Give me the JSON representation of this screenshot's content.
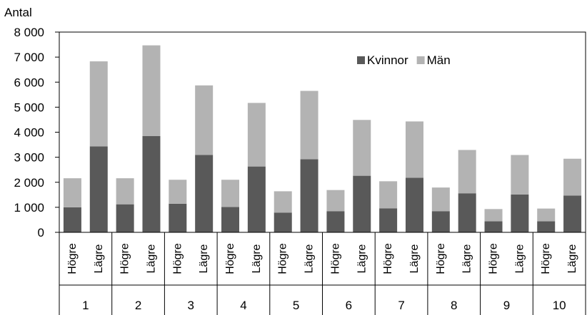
{
  "chart_data": {
    "type": "bar",
    "stacked": true,
    "ylabel": "Antal",
    "ylim": [
      0,
      8000
    ],
    "yticks": [
      "0",
      "1 000",
      "2 000",
      "3 000",
      "4 000",
      "5 000",
      "6 000",
      "7 000",
      "8 000"
    ],
    "ytick_values": [
      0,
      1000,
      2000,
      3000,
      4000,
      5000,
      6000,
      7000,
      8000
    ],
    "grid": false,
    "legend_position": "top-right",
    "groups": [
      "1",
      "2",
      "3",
      "4",
      "5",
      "6",
      "7",
      "8",
      "9",
      "10"
    ],
    "subcategories": [
      "Högre",
      "Lägre"
    ],
    "series": [
      {
        "name": "Kvinnor",
        "color": "#595959",
        "values": [
          1000,
          3430,
          1120,
          3850,
          1140,
          3090,
          1010,
          2630,
          790,
          2920,
          840,
          2260,
          960,
          2180,
          840,
          1560,
          440,
          1510,
          440,
          1470
        ]
      },
      {
        "name": "Män",
        "color": "#b3b3b3",
        "values": [
          1160,
          3400,
          1040,
          3620,
          960,
          2780,
          1090,
          2540,
          850,
          2730,
          850,
          2230,
          1080,
          2250,
          950,
          1730,
          490,
          1580,
          510,
          1470
        ]
      }
    ]
  }
}
